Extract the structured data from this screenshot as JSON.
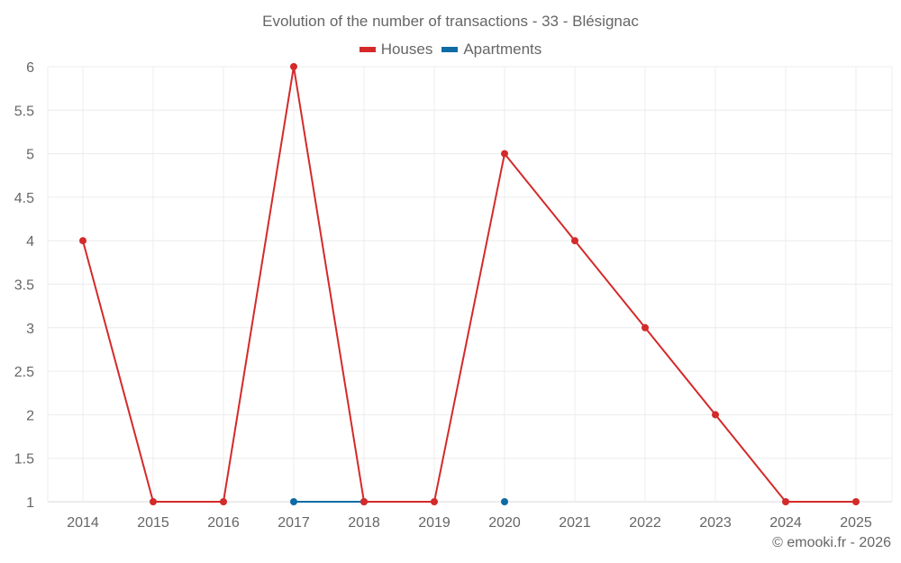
{
  "chart_data": {
    "type": "line",
    "title": "Evolution of the number of transactions - 33 - Blésignac",
    "xlabel": "",
    "ylabel": "",
    "categories": [
      "2014",
      "2015",
      "2016",
      "2017",
      "2018",
      "2019",
      "2020",
      "2021",
      "2022",
      "2023",
      "2024",
      "2025"
    ],
    "yticks": [
      "1",
      "1.5",
      "2",
      "2.5",
      "3",
      "3.5",
      "4",
      "4.5",
      "5",
      "5.5",
      "6"
    ],
    "ylim": [
      1,
      6
    ],
    "grid": true,
    "legend_position": "top",
    "series": [
      {
        "name": "Houses",
        "color": "#d42a2a",
        "values": [
          4,
          1,
          1,
          6,
          1,
          1,
          5,
          4,
          3,
          2,
          1,
          1
        ]
      },
      {
        "name": "Apartments",
        "color": "#0f6ba3",
        "values": [
          null,
          null,
          null,
          1,
          1,
          null,
          1,
          null,
          null,
          null,
          null,
          null
        ]
      }
    ]
  },
  "credit": "© emooki.fr - 2026"
}
